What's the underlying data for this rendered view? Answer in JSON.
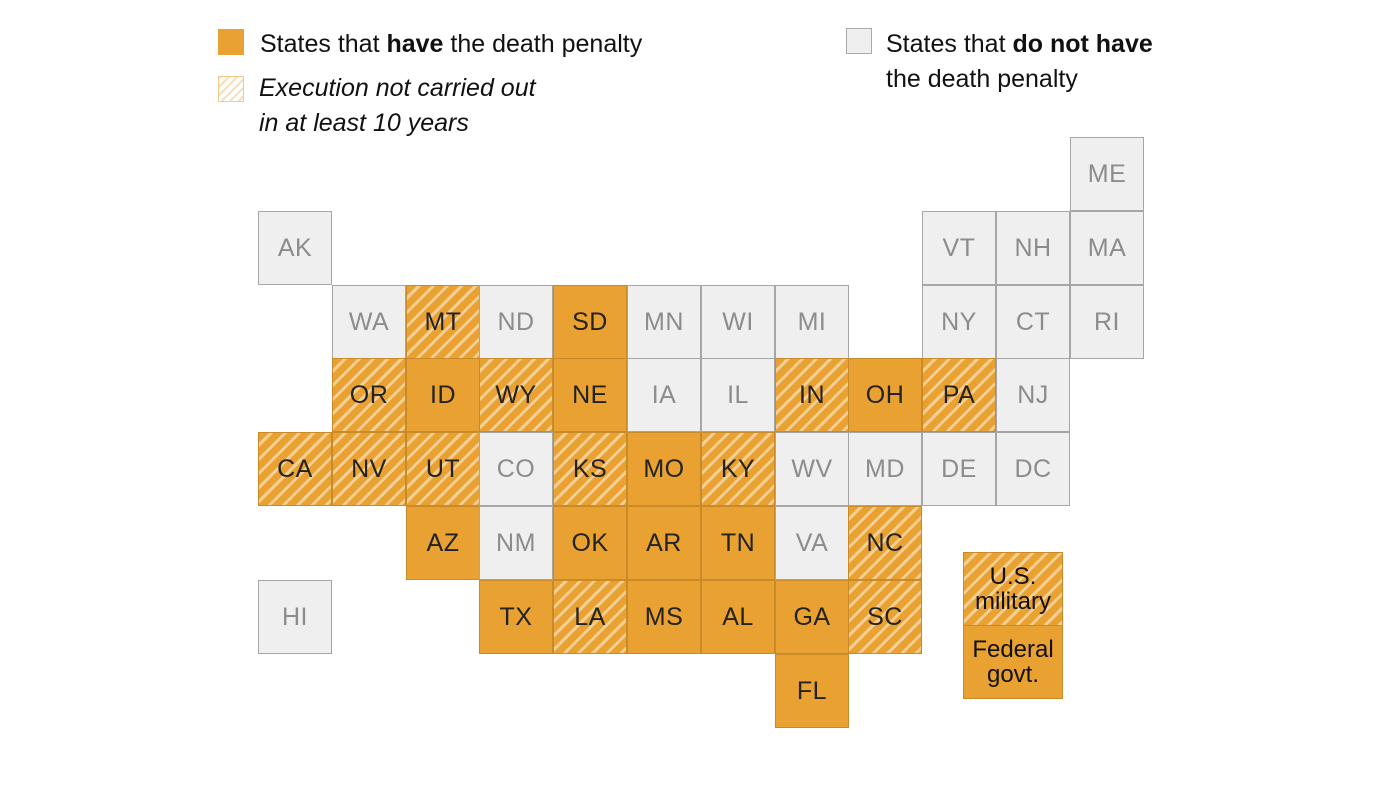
{
  "legend": {
    "have": {
      "prefix": "States that ",
      "bold": "have",
      "suffix": " the death penalty",
      "color": "#E9A132"
    },
    "not_carried": {
      "line1": "Execution not carried out",
      "line2": "in at least 10 years"
    },
    "do_not_have": {
      "prefix": "States that ",
      "bold": "do not have",
      "line2": "the death penalty",
      "color": "#efefef"
    }
  },
  "states": [
    {
      "abbr": "ME",
      "status": "none",
      "col": 11,
      "row": 0
    },
    {
      "abbr": "AK",
      "status": "none",
      "col": 0,
      "row": 1
    },
    {
      "abbr": "VT",
      "status": "none",
      "col": 9,
      "row": 1
    },
    {
      "abbr": "NH",
      "status": "none",
      "col": 10,
      "row": 1
    },
    {
      "abbr": "MA",
      "status": "none",
      "col": 11,
      "row": 1
    },
    {
      "abbr": "WA",
      "status": "none",
      "col": 1,
      "row": 2
    },
    {
      "abbr": "MT",
      "status": "hatch",
      "col": 2,
      "row": 2
    },
    {
      "abbr": "ND",
      "status": "none",
      "col": 3,
      "row": 2
    },
    {
      "abbr": "SD",
      "status": "have",
      "col": 4,
      "row": 2
    },
    {
      "abbr": "MN",
      "status": "none",
      "col": 5,
      "row": 2
    },
    {
      "abbr": "WI",
      "status": "none",
      "col": 6,
      "row": 2
    },
    {
      "abbr": "MI",
      "status": "none",
      "col": 7,
      "row": 2
    },
    {
      "abbr": "NY",
      "status": "none",
      "col": 9,
      "row": 2
    },
    {
      "abbr": "CT",
      "status": "none",
      "col": 10,
      "row": 2
    },
    {
      "abbr": "RI",
      "status": "none",
      "col": 11,
      "row": 2
    },
    {
      "abbr": "OR",
      "status": "hatch",
      "col": 1,
      "row": 3
    },
    {
      "abbr": "ID",
      "status": "have",
      "col": 2,
      "row": 3
    },
    {
      "abbr": "WY",
      "status": "hatch",
      "col": 3,
      "row": 3
    },
    {
      "abbr": "NE",
      "status": "have",
      "col": 4,
      "row": 3
    },
    {
      "abbr": "IA",
      "status": "none",
      "col": 5,
      "row": 3
    },
    {
      "abbr": "IL",
      "status": "none",
      "col": 6,
      "row": 3
    },
    {
      "abbr": "IN",
      "status": "hatch",
      "col": 7,
      "row": 3
    },
    {
      "abbr": "OH",
      "status": "have",
      "col": 8,
      "row": 3
    },
    {
      "abbr": "PA",
      "status": "hatch",
      "col": 9,
      "row": 3
    },
    {
      "abbr": "NJ",
      "status": "none",
      "col": 10,
      "row": 3
    },
    {
      "abbr": "CA",
      "status": "hatch",
      "col": 0,
      "row": 4
    },
    {
      "abbr": "NV",
      "status": "hatch",
      "col": 1,
      "row": 4
    },
    {
      "abbr": "UT",
      "status": "hatch",
      "col": 2,
      "row": 4
    },
    {
      "abbr": "CO",
      "status": "none",
      "col": 3,
      "row": 4
    },
    {
      "abbr": "KS",
      "status": "hatch",
      "col": 4,
      "row": 4
    },
    {
      "abbr": "MO",
      "status": "have",
      "col": 5,
      "row": 4
    },
    {
      "abbr": "KY",
      "status": "hatch",
      "col": 6,
      "row": 4
    },
    {
      "abbr": "WV",
      "status": "none",
      "col": 7,
      "row": 4
    },
    {
      "abbr": "MD",
      "status": "none",
      "col": 8,
      "row": 4
    },
    {
      "abbr": "DE",
      "status": "none",
      "col": 9,
      "row": 4
    },
    {
      "abbr": "DC",
      "status": "none",
      "col": 10,
      "row": 4
    },
    {
      "abbr": "AZ",
      "status": "have",
      "col": 2,
      "row": 5
    },
    {
      "abbr": "NM",
      "status": "none",
      "col": 3,
      "row": 5
    },
    {
      "abbr": "OK",
      "status": "have",
      "col": 4,
      "row": 5
    },
    {
      "abbr": "AR",
      "status": "have",
      "col": 5,
      "row": 5
    },
    {
      "abbr": "TN",
      "status": "have",
      "col": 6,
      "row": 5
    },
    {
      "abbr": "VA",
      "status": "none",
      "col": 7,
      "row": 5
    },
    {
      "abbr": "NC",
      "status": "hatch",
      "col": 8,
      "row": 5
    },
    {
      "abbr": "HI",
      "status": "none",
      "col": 0,
      "row": 6
    },
    {
      "abbr": "TX",
      "status": "have",
      "col": 3,
      "row": 6
    },
    {
      "abbr": "LA",
      "status": "hatch",
      "col": 4,
      "row": 6
    },
    {
      "abbr": "MS",
      "status": "have",
      "col": 5,
      "row": 6
    },
    {
      "abbr": "AL",
      "status": "have",
      "col": 6,
      "row": 6
    },
    {
      "abbr": "GA",
      "status": "have",
      "col": 7,
      "row": 6
    },
    {
      "abbr": "SC",
      "status": "hatch",
      "col": 8,
      "row": 6
    },
    {
      "abbr": "FL",
      "status": "have",
      "col": 7,
      "row": 7
    }
  ],
  "federal": {
    "military": {
      "line1": "U.S.",
      "line2": "military",
      "status": "hatch"
    },
    "government": {
      "line1": "Federal",
      "line2": "govt.",
      "status": "have"
    }
  }
}
